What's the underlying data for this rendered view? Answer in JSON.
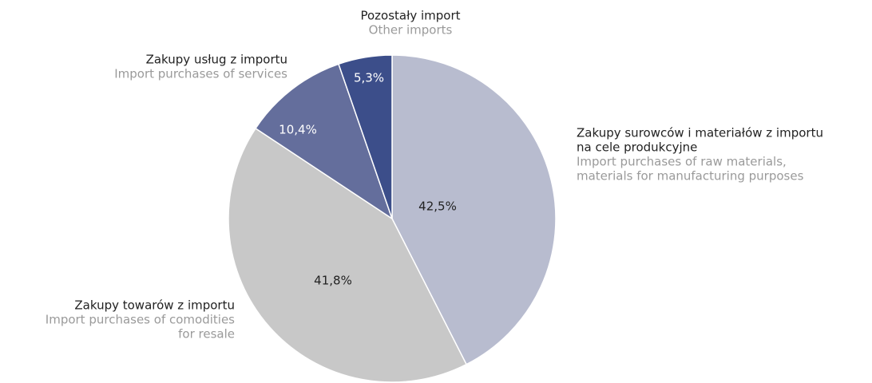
{
  "chart_data": {
    "type": "pie",
    "values": [
      42.5,
      41.8,
      10.4,
      5.3
    ],
    "value_labels": [
      "42,5%",
      "41,8%",
      "10,4%",
      "5,3%"
    ],
    "colors": [
      "#b8bccf",
      "#c8c8c8",
      "#646e9c",
      "#3c4e8a"
    ],
    "labels": [
      {
        "pl": [
          "Zakupy surowców i materiałów z importu",
          "na cele produkcyjne"
        ],
        "en": [
          "Import purchases of raw materials,",
          "materials for manufacturing purposes"
        ]
      },
      {
        "pl": [
          "Zakupy towarów z importu"
        ],
        "en": [
          "Import purchases of comodities",
          "for resale"
        ]
      },
      {
        "pl": [
          "Zakupy usług z importu"
        ],
        "en": [
          "Import purchases of services"
        ]
      },
      {
        "pl": [
          "Pozostały import"
        ],
        "en": [
          "Other imports"
        ]
      }
    ]
  }
}
